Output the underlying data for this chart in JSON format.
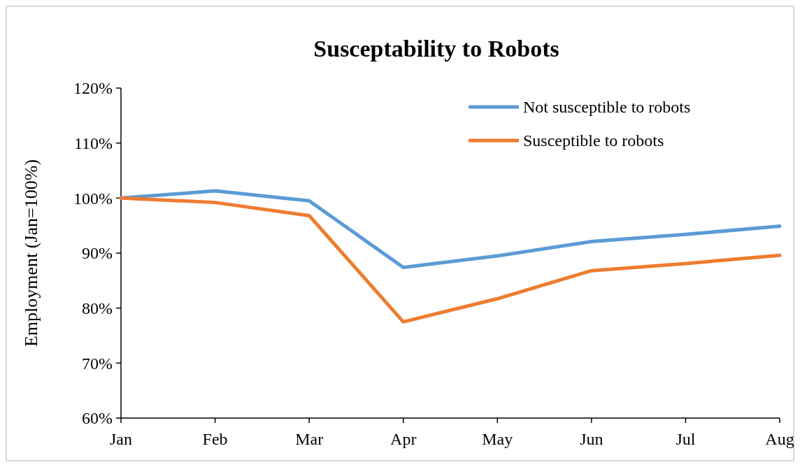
{
  "chart_data": {
    "type": "line",
    "title": "Susceptability to Robots",
    "ylabel": "Employment (Jan=100%)",
    "categories": [
      "Jan",
      "Feb",
      "Mar",
      "Apr",
      "May",
      "Jun",
      "Jul",
      "Aug"
    ],
    "series": [
      {
        "name": "Not susceptible to robots",
        "color": "#5b9bd5",
        "values": [
          100,
          101.3,
          99.5,
          87.4,
          89.5,
          92.1,
          93.4,
          94.9
        ]
      },
      {
        "name": "Susceptible to robots",
        "color": "#ed7d31",
        "values": [
          100,
          99.2,
          96.8,
          77.5,
          81.7,
          86.8,
          88.1,
          89.6
        ]
      }
    ],
    "ylim": [
      60,
      120
    ],
    "yticks": [
      {
        "value": 60,
        "label": "60%"
      },
      {
        "value": 70,
        "label": "70%"
      },
      {
        "value": 80,
        "label": "80%"
      },
      {
        "value": 90,
        "label": "90%"
      },
      {
        "value": 100,
        "label": "100%"
      },
      {
        "value": 110,
        "label": "110%"
      },
      {
        "value": 120,
        "label": "120%"
      }
    ],
    "grid": false,
    "legend": "top right",
    "marker": "none",
    "line_style": "solid"
  }
}
